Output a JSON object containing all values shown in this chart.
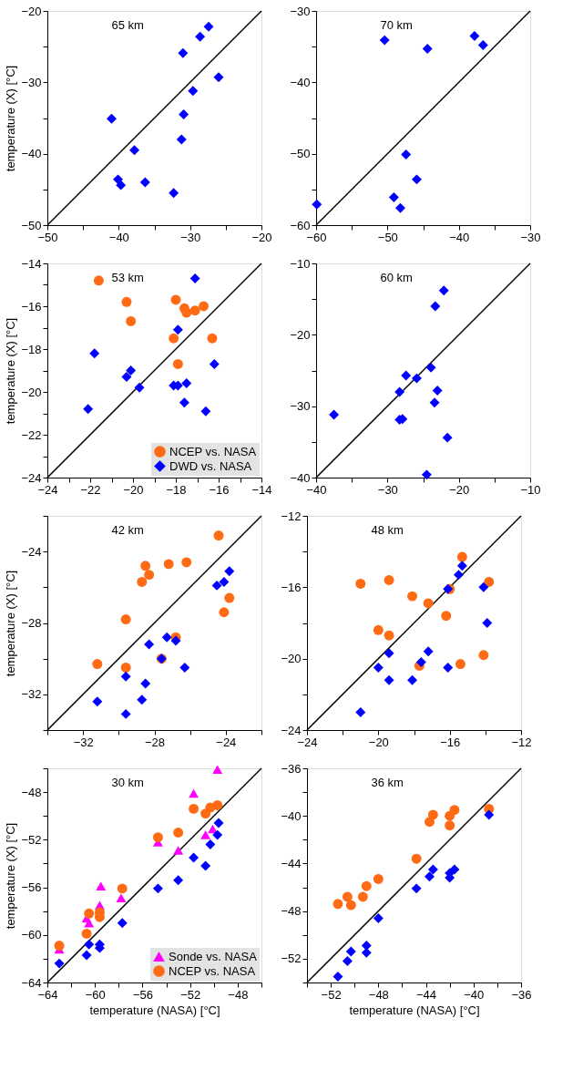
{
  "chart_data": [
    {
      "type": "scatter",
      "annotations": [
        "65 km"
      ],
      "ylabel": "temperature (X) [°C]",
      "xlim": [
        -50,
        -20
      ],
      "ylim": [
        -50,
        -20
      ],
      "xticks": [
        -50,
        {
          "value": -45,
          "label": null
        },
        -40,
        {
          "value": -35,
          "label": null
        },
        -30,
        {
          "value": -25,
          "label": null
        },
        -20
      ],
      "yticks": [
        -50,
        {
          "value": -45,
          "label": null
        },
        -40,
        {
          "value": -35,
          "label": null
        },
        -30,
        {
          "value": -25,
          "label": null
        },
        -20
      ],
      "series": [
        {
          "type": "line",
          "color": "#000000",
          "line_style": "solid",
          "x": [
            -50,
            -20
          ],
          "values": [
            -50,
            -20
          ]
        },
        {
          "color": "#0000ff",
          "marker": "diamond",
          "x": [
            -27.4,
            -28.6,
            -31.0,
            -26.0,
            -29.6,
            -30.9,
            -41.0,
            -31.2,
            -37.8,
            -40.1,
            -39.7,
            -36.3,
            -32.3
          ],
          "values": [
            -22.2,
            -23.6,
            -25.9,
            -29.3,
            -31.2,
            -34.5,
            -35.1,
            -38.0,
            -39.5,
            -43.6,
            -44.4,
            -44.0,
            -45.5
          ]
        }
      ]
    },
    {
      "type": "scatter",
      "annotations": [
        "70 km"
      ],
      "xlim": [
        -60,
        -30
      ],
      "ylim": [
        -60,
        -30
      ],
      "xticks": [
        -60,
        {
          "value": -55,
          "label": null
        },
        -50,
        {
          "value": -45,
          "label": null
        },
        -40,
        {
          "value": -35,
          "label": null
        },
        -30
      ],
      "yticks": [
        -60,
        {
          "value": -55,
          "label": null
        },
        -50,
        {
          "value": -45,
          "label": null
        },
        -40,
        {
          "value": -35,
          "label": null
        },
        -30
      ],
      "series": [
        {
          "type": "line",
          "color": "#000000",
          "line_style": "solid",
          "x": [
            -60,
            -30
          ],
          "values": [
            -60,
            -30
          ]
        },
        {
          "color": "#0000ff",
          "marker": "diamond",
          "x": [
            -50.4,
            -44.4,
            -37.8,
            -36.6,
            -47.4,
            -45.9,
            -49.1,
            -48.2,
            -59.9
          ],
          "values": [
            -34.1,
            -35.3,
            -33.5,
            -34.8,
            -50.1,
            -53.6,
            -56.1,
            -57.6,
            -57.1
          ]
        }
      ]
    },
    {
      "type": "scatter",
      "annotations": [
        "53 km"
      ],
      "ylabel": "temperature (X) [°C]",
      "xlim": [
        -24,
        -14
      ],
      "ylim": [
        -24,
        -14
      ],
      "legend": "bottom right",
      "xticks": [
        -24,
        {
          "value": -23,
          "label": null
        },
        -22,
        {
          "value": -21,
          "label": null
        },
        -20,
        {
          "value": -19,
          "label": null
        },
        -18,
        {
          "value": -17,
          "label": null
        },
        -16,
        {
          "value": -15,
          "label": null
        },
        -14
      ],
      "yticks": [
        -24,
        {
          "value": -23,
          "label": null
        },
        -22,
        {
          "value": -21,
          "label": null
        },
        -20,
        {
          "value": -19,
          "label": null
        },
        -18,
        {
          "value": -17,
          "label": null
        },
        -16,
        {
          "value": -15,
          "label": null
        },
        -14
      ],
      "series": [
        {
          "type": "line",
          "color": "#000000",
          "line_style": "solid",
          "x": [
            -24,
            -14
          ],
          "values": [
            -24,
            -14
          ]
        },
        {
          "name": "NCEP vs. NASA",
          "color": "#ff6a14",
          "marker": "circle",
          "x": [
            -21.6,
            -20.3,
            -20.1,
            -18.0,
            -17.6,
            -17.5,
            -17.1,
            -16.7,
            -18.1,
            -16.3,
            -17.9
          ],
          "values": [
            -14.8,
            -15.8,
            -16.7,
            -15.7,
            -16.1,
            -16.3,
            -16.2,
            -16.0,
            -17.5,
            -17.5,
            -18.7
          ]
        },
        {
          "name": "DWD vs. NASA",
          "color": "#0000ff",
          "marker": "diamond",
          "x": [
            -17.1,
            -17.9,
            -21.8,
            -16.2,
            -20.1,
            -20.3,
            -19.7,
            -18.1,
            -17.9,
            -17.5,
            -17.6,
            -16.6,
            -22.1
          ],
          "values": [
            -14.7,
            -17.1,
            -18.2,
            -18.7,
            -19.0,
            -19.3,
            -19.8,
            -19.7,
            -19.7,
            -19.6,
            -20.5,
            -20.9,
            -20.8
          ]
        }
      ]
    },
    {
      "type": "scatter",
      "annotations": [
        "60 km"
      ],
      "xlim": [
        -40,
        -10
      ],
      "ylim": [
        -40,
        -10
      ],
      "xticks": [
        -40,
        {
          "value": -35,
          "label": null
        },
        -30,
        {
          "value": -25,
          "label": null
        },
        -20,
        {
          "value": -15,
          "label": null
        },
        -10
      ],
      "yticks": [
        -40,
        {
          "value": -35,
          "label": null
        },
        -30,
        {
          "value": -25,
          "label": null
        },
        -20,
        {
          "value": -15,
          "label": null
        },
        -10
      ],
      "series": [
        {
          "type": "line",
          "color": "#000000",
          "line_style": "solid",
          "x": [
            -40,
            -10
          ],
          "values": [
            -40,
            -10
          ]
        },
        {
          "color": "#0000ff",
          "marker": "diamond",
          "x": [
            -22.1,
            -23.3,
            -23.9,
            -27.4,
            -25.9,
            -28.3,
            -23.0,
            -23.4,
            -37.5,
            -28.3,
            -27.9,
            -21.6,
            -24.5
          ],
          "values": [
            -13.8,
            -16.0,
            -24.6,
            -25.7,
            -26.1,
            -28.0,
            -27.8,
            -29.5,
            -31.2,
            -31.9,
            -31.8,
            -34.4,
            -39.6
          ]
        }
      ]
    },
    {
      "type": "scatter",
      "annotations": [
        "42 km"
      ],
      "ylabel": "temperature (X) [°C]",
      "xlim": [
        -34,
        -22
      ],
      "ylim": [
        -34,
        -22
      ],
      "xticks": [
        {
          "value": -34,
          "label": null
        },
        -32,
        {
          "value": -30,
          "label": null
        },
        -28,
        {
          "value": -26,
          "label": null
        },
        -24,
        {
          "value": -22,
          "label": null
        }
      ],
      "yticks": [
        {
          "value": -34,
          "label": null
        },
        -32,
        {
          "value": -30,
          "label": null
        },
        -28,
        {
          "value": -26,
          "label": null
        },
        -24,
        {
          "value": -22,
          "label": null
        }
      ],
      "series": [
        {
          "type": "line",
          "color": "#000000",
          "line_style": "solid",
          "x": [
            -34,
            -22
          ],
          "values": [
            -34,
            -22
          ]
        },
        {
          "color": "#ff6a14",
          "marker": "circle",
          "x": [
            -24.4,
            -26.2,
            -27.2,
            -28.5,
            -28.3,
            -28.7,
            -23.8,
            -24.1,
            -29.6,
            -31.2,
            -29.6,
            -26.8,
            -27.6
          ],
          "values": [
            -23.1,
            -24.6,
            -24.7,
            -24.8,
            -25.3,
            -25.7,
            -26.6,
            -27.4,
            -27.8,
            -30.3,
            -30.5,
            -28.8,
            -30.0
          ]
        },
        {
          "color": "#0000ff",
          "marker": "diamond",
          "x": [
            -23.8,
            -24.1,
            -24.5,
            -28.3,
            -27.3,
            -26.8,
            -27.6,
            -26.3,
            -29.6,
            -28.5,
            -28.7,
            -31.2,
            -29.6
          ],
          "values": [
            -25.1,
            -25.7,
            -25.9,
            -29.2,
            -28.8,
            -29.0,
            -30.0,
            -30.5,
            -31.0,
            -31.4,
            -32.3,
            -32.4,
            -33.1
          ]
        }
      ]
    },
    {
      "type": "scatter",
      "annotations": [
        "48 km"
      ],
      "xlim": [
        -24,
        -12
      ],
      "ylim": [
        -24,
        -12
      ],
      "xticks": [
        -24,
        {
          "value": -22,
          "label": null
        },
        -20,
        {
          "value": -18,
          "label": null
        },
        -16,
        {
          "value": -14,
          "label": null
        },
        -12
      ],
      "yticks": [
        -24,
        {
          "value": -22,
          "label": null
        },
        -20,
        {
          "value": -18,
          "label": null
        },
        -16,
        {
          "value": -14,
          "label": null
        },
        -12
      ],
      "series": [
        {
          "type": "line",
          "color": "#000000",
          "line_style": "solid",
          "x": [
            -24,
            -12
          ],
          "values": [
            -24,
            -12
          ]
        },
        {
          "color": "#ff6a14",
          "marker": "circle",
          "x": [
            -15.3,
            -13.8,
            -21.0,
            -19.4,
            -18.1,
            -17.2,
            -16.0,
            -16.2,
            -20.0,
            -19.4,
            -17.7,
            -15.4,
            -14.1
          ],
          "values": [
            -14.3,
            -15.7,
            -15.8,
            -15.6,
            -16.5,
            -16.9,
            -16.1,
            -17.6,
            -18.4,
            -18.7,
            -20.4,
            -20.3,
            -19.8
          ]
        },
        {
          "color": "#0000ff",
          "marker": "diamond",
          "x": [
            -15.3,
            -15.5,
            -16.1,
            -14.1,
            -13.9,
            -17.2,
            -19.4,
            -17.6,
            -20.0,
            -16.1,
            -19.4,
            -18.1,
            -21.0
          ],
          "values": [
            -14.8,
            -15.3,
            -16.1,
            -16.0,
            -18.0,
            -19.6,
            -19.7,
            -20.2,
            -20.5,
            -20.5,
            -21.2,
            -21.2,
            -23.0
          ]
        }
      ]
    },
    {
      "type": "scatter",
      "annotations": [
        "30 km"
      ],
      "ylabel": "temperature (X) [°C]",
      "xlabel": "temperature (NASA) [°C]",
      "xlim": [
        -64,
        -46
      ],
      "ylim": [
        -64,
        -46
      ],
      "legend": "bottom right",
      "xticks": [
        -64,
        {
          "value": -62,
          "label": null
        },
        -60,
        {
          "value": -58,
          "label": null
        },
        -56,
        {
          "value": -54,
          "label": null
        },
        -52,
        {
          "value": -50,
          "label": null
        },
        -48,
        {
          "value": -46,
          "label": null
        }
      ],
      "yticks": [
        -64,
        {
          "value": -62,
          "label": null
        },
        -60,
        {
          "value": -58,
          "label": null
        },
        -56,
        {
          "value": -54,
          "label": null
        },
        -52,
        {
          "value": -50,
          "label": null
        },
        -48,
        {
          "value": -46,
          "label": null
        }
      ],
      "series": [
        {
          "type": "line",
          "color": "#000000",
          "line_style": "solid",
          "x": [
            -64,
            -46
          ],
          "values": [
            -64,
            -46
          ]
        },
        {
          "name": "Sonde vs. NASA",
          "color": "#ff00ff",
          "marker": "triangle",
          "x": [
            -49.7,
            -51.7,
            -54.7,
            -53.0,
            -50.7,
            -50.1,
            -59.5,
            -59.6,
            -57.8,
            -60.7,
            -60.5,
            -63.0
          ],
          "values": [
            -46.1,
            -48.1,
            -52.2,
            -52.9,
            -51.6,
            -51.1,
            -55.9,
            -57.5,
            -56.9,
            -58.6,
            -59.0,
            -61.2
          ]
        },
        {
          "name": "NCEP vs. NASA",
          "color": "#ff6a14",
          "marker": "circle",
          "x": [
            -49.7,
            -50.3,
            -50.7,
            -51.7,
            -53.0,
            -54.7,
            -57.7,
            -60.5,
            -59.6,
            -59.6,
            -60.7,
            -63.0
          ],
          "values": [
            -49.1,
            -49.3,
            -49.8,
            -49.4,
            -51.4,
            -51.8,
            -56.1,
            -58.2,
            -58.1,
            -58.5,
            -59.9,
            -60.9
          ]
        },
        {
          "color": "#0000ff",
          "marker": "diamond",
          "x": [
            -49.6,
            -49.7,
            -50.3,
            -51.7,
            -50.7,
            -53.0,
            -54.7,
            -57.7,
            -60.5,
            -59.6,
            -59.6,
            -60.7,
            -63.0
          ],
          "values": [
            -50.6,
            -51.6,
            -52.4,
            -53.5,
            -54.2,
            -55.4,
            -56.1,
            -59.0,
            -60.8,
            -60.8,
            -61.1,
            -61.7,
            -62.4
          ]
        }
      ]
    },
    {
      "type": "scatter",
      "annotations": [
        "36 km"
      ],
      "xlabel": "temperature (NASA) [°C]",
      "xlim": [
        -54,
        -36
      ],
      "ylim": [
        -54,
        -36
      ],
      "xticks": [
        {
          "value": -54,
          "label": null
        },
        -52,
        {
          "value": -50,
          "label": null
        },
        -48,
        {
          "value": -46,
          "label": null
        },
        -44,
        {
          "value": -42,
          "label": null
        },
        -40,
        {
          "value": -38,
          "label": null
        },
        -36
      ],
      "yticks": [
        {
          "value": -54,
          "label": null
        },
        -52,
        {
          "value": -50,
          "label": null
        },
        -48,
        {
          "value": -46,
          "label": null
        },
        -44,
        {
          "value": -42,
          "label": null
        },
        -40,
        {
          "value": -38,
          "label": null
        },
        -36
      ],
      "series": [
        {
          "type": "line",
          "color": "#000000",
          "line_style": "solid",
          "x": [
            -54,
            -36
          ],
          "values": [
            -54,
            -36
          ]
        },
        {
          "color": "#ff6a14",
          "marker": "circle",
          "x": [
            -38.7,
            -41.6,
            -42.0,
            -42.0,
            -43.4,
            -43.7,
            -44.8,
            -48.0,
            -49.0,
            -49.3,
            -50.6,
            -50.3,
            -51.4
          ],
          "values": [
            -39.4,
            -39.5,
            -40.0,
            -40.8,
            -39.9,
            -40.5,
            -43.6,
            -45.3,
            -45.9,
            -46.8,
            -46.8,
            -47.5,
            -47.4
          ]
        },
        {
          "color": "#0000ff",
          "marker": "diamond",
          "x": [
            -38.7,
            -43.4,
            -43.7,
            -42.0,
            -42.0,
            -41.6,
            -44.8,
            -48.0,
            -49.0,
            -49.0,
            -50.3,
            -50.6,
            -51.4
          ],
          "values": [
            -39.9,
            -44.5,
            -45.1,
            -44.8,
            -45.2,
            -44.5,
            -46.1,
            -48.6,
            -50.9,
            -51.5,
            -51.4,
            -52.2,
            -53.5
          ]
        }
      ]
    }
  ]
}
